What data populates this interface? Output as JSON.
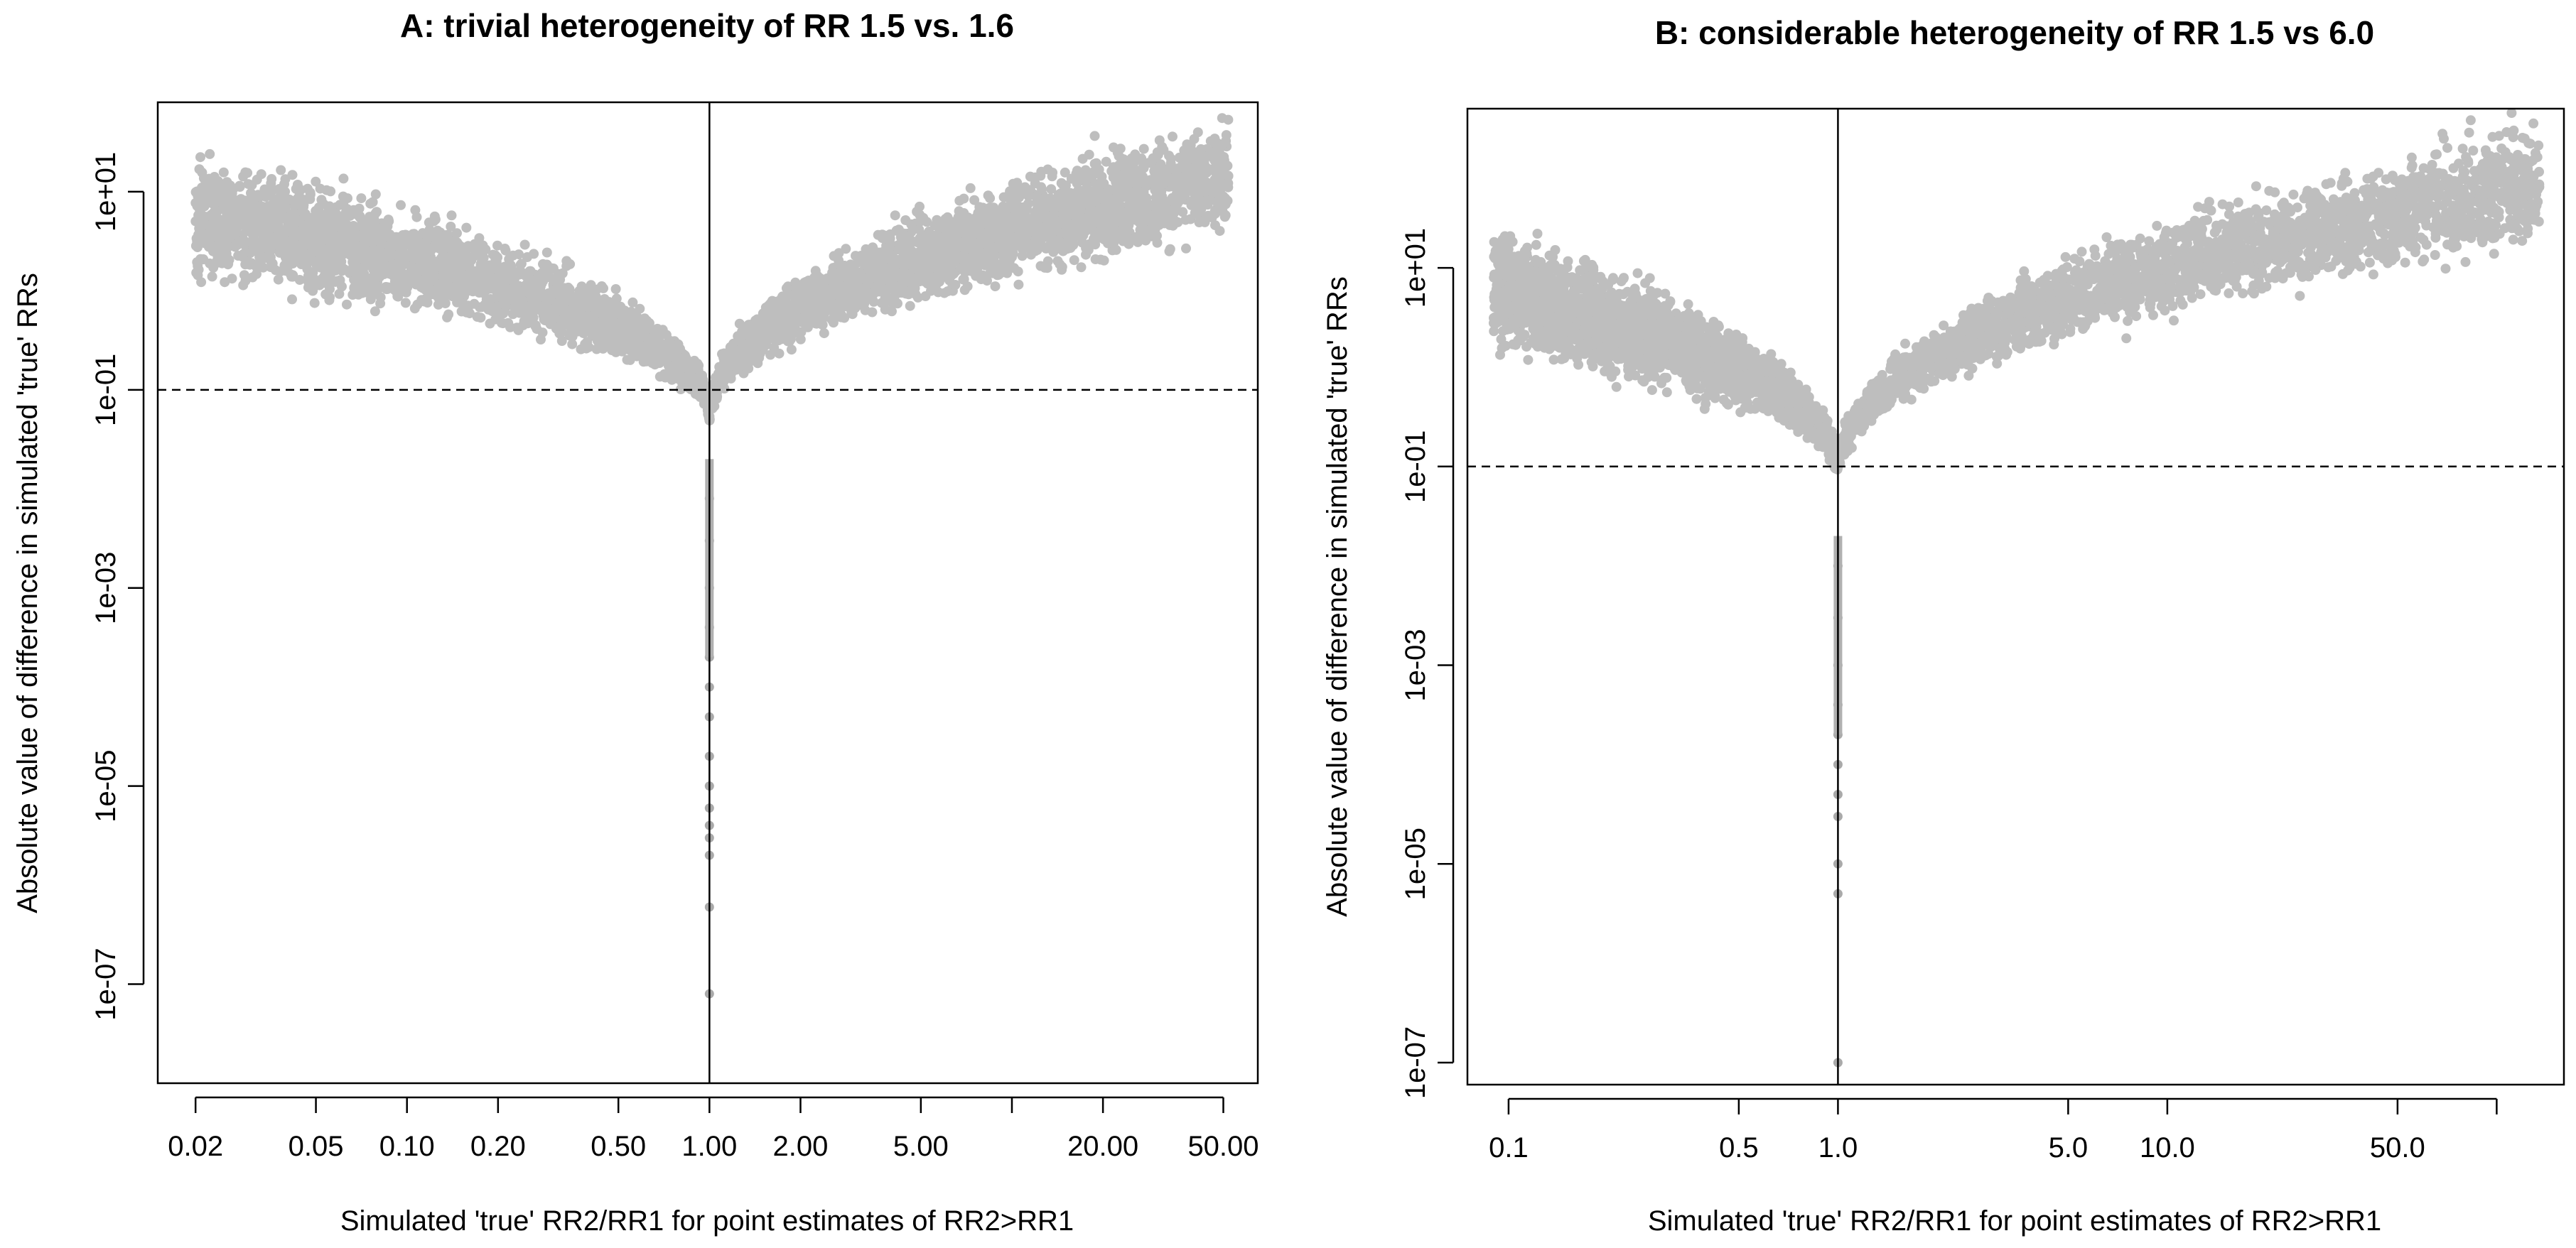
{
  "chart_data": [
    {
      "type": "scatter",
      "panel": "A",
      "title": "A: trivial heterogeneity of RR 1.5 vs. 1.6",
      "xlabel": "Simulated 'true' RR2/RR1 for point estimates of RR2>RR1",
      "ylabel": "Absolute value of difference in simulated 'true' RRs",
      "xscale": "log",
      "yscale": "log",
      "xlim": [
        0.015,
        65
      ],
      "ylim": [
        1e-08,
        80
      ],
      "xticks": [
        0.02,
        0.05,
        0.1,
        0.2,
        0.5,
        1.0,
        2.0,
        5.0,
        10.0,
        20.0,
        50.0
      ],
      "xtick_labels": [
        "0.02",
        "0.05",
        "0.10",
        "0.20",
        "0.50",
        "1.00",
        "2.00",
        "5.00",
        "",
        "20.00",
        "50.00"
      ],
      "yticks": [
        1e-07,
        1e-05,
        0.001,
        0.1,
        10
      ],
      "ytick_labels": [
        "1e-07",
        "1e-05",
        "1e-03",
        "1e-01",
        "1e+01"
      ],
      "hline": 0.1,
      "vline": 1.0,
      "point_color": "#bebebe",
      "left_branch": {
        "xmin": 0.02,
        "xmax": 1.0,
        "y_center_at_xmin": 5.5,
        "y_center_at_xmax": 0.05
      },
      "right_branch": {
        "xmin": 1.0,
        "xmax": 52,
        "y_center_at_xmin": 0.05,
        "y_center_at_xmax": 14
      },
      "stem_points": [
        0.008,
        0.003,
        0.001,
        0.0004,
        0.0002,
        0.0001,
        5e-05,
        2e-05,
        1e-05,
        6e-06,
        4e-06,
        3e-06,
        2e-06,
        6e-07,
        8e-08
      ]
    },
    {
      "type": "scatter",
      "panel": "B",
      "title": "B: considerable heterogeneity of RR 1.5 vs 6.0",
      "xlabel": "Simulated 'true' RR2/RR1 for point estimates of RR2>RR1",
      "ylabel": "Absolute value of difference in simulated 'true' RRs",
      "xscale": "log",
      "yscale": "log",
      "xlim": [
        0.075,
        160
      ],
      "ylim": [
        6e-08,
        400
      ],
      "xticks": [
        0.1,
        0.5,
        1.0,
        5.0,
        10.0,
        50.0,
        100.0
      ],
      "xtick_labels": [
        "0.1",
        "0.5",
        "1.0",
        "5.0",
        "10.0",
        "50.0",
        ""
      ],
      "yticks": [
        1e-07,
        1e-05,
        0.001,
        0.1,
        10
      ],
      "ytick_labels": [
        "1e-07",
        "1e-05",
        "1e-03",
        "1e-01",
        "1e+01"
      ],
      "hline": 0.1,
      "vline": 1.0,
      "point_color": "#bebebe",
      "left_branch": {
        "xmin": 0.09,
        "xmax": 1.0,
        "y_center_at_xmin": 6,
        "y_center_at_xmax": 0.08
      },
      "right_branch": {
        "xmin": 1.0,
        "xmax": 135,
        "y_center_at_xmin": 0.08,
        "y_center_at_xmax": 70
      },
      "stem_points": [
        0.01,
        0.003,
        0.001,
        0.0004,
        0.0002,
        0.0001,
        5e-05,
        3e-05,
        1e-05,
        5e-06,
        1e-07
      ]
    }
  ]
}
